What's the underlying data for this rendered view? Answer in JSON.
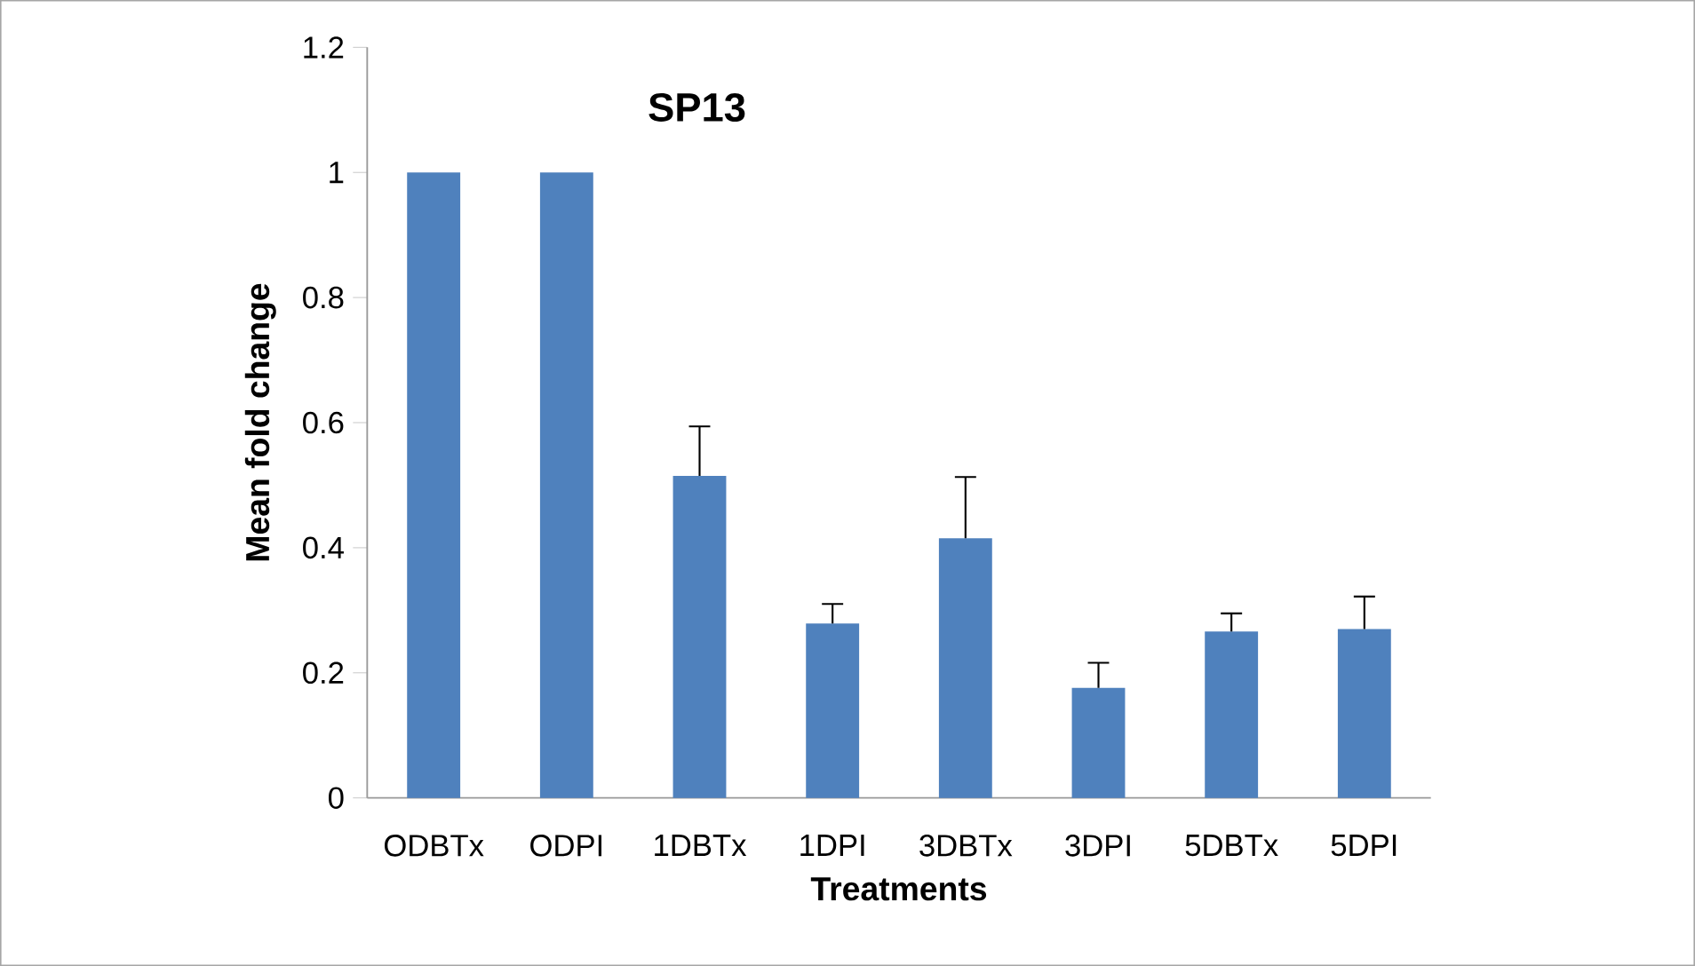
{
  "chart_data": {
    "type": "bar",
    "title": "SP13",
    "xlabel": "Treatments",
    "ylabel": "Mean fold change",
    "categories": [
      "ODBTx",
      "ODPI",
      "1DBTx",
      "1DPI",
      "3DBTx",
      "3DPI",
      "5DBTx",
      "5DPI"
    ],
    "values": [
      1,
      1,
      0.515,
      0.279,
      0.415,
      0.176,
      0.266,
      0.27
    ],
    "errors": [
      null,
      null,
      [
        0.515,
        0.594
      ],
      [
        0.279,
        0.31
      ],
      [
        0.415,
        0.513
      ],
      [
        0.176,
        0.216
      ],
      [
        0.266,
        0.295
      ],
      [
        0.27,
        0.322
      ]
    ],
    "color": "#4f81bd",
    "ylim": [
      0,
      1.2
    ],
    "yticks": [
      0,
      0.2,
      0.4,
      0.6,
      0.8,
      1,
      1.2
    ],
    "grid": false
  }
}
